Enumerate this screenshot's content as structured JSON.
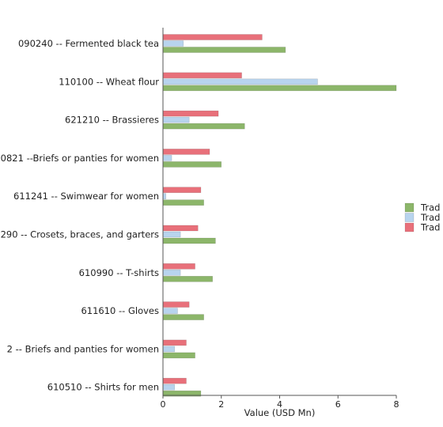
{
  "chart_data": {
    "type": "bar",
    "orientation": "horizontal",
    "categories": [
      "090240 -- Fermented black tea",
      "110100 -- Wheat flour",
      "621210 -- Brassieres",
      "0821 --Briefs or panties for women",
      "611241 -- Swimwear for women",
      "290 -- Crosets, braces, and garters",
      "610990 -- T-shirts",
      "611610 -- Gloves",
      "2 -- Briefs and panties for women",
      "610510 -- Shirts for men"
    ],
    "series": [
      {
        "name": "Trad",
        "color": "#e8707a",
        "values": [
          3.4,
          2.7,
          1.9,
          1.6,
          1.3,
          1.2,
          1.1,
          0.9,
          0.8,
          0.8
        ]
      },
      {
        "name": "Trad",
        "color": "#b8d4ee",
        "values": [
          0.7,
          5.3,
          0.9,
          0.3,
          0.1,
          0.6,
          0.6,
          0.5,
          0.4,
          0.4
        ]
      },
      {
        "name": "Trad",
        "color": "#8cb66a",
        "values": [
          4.2,
          8.0,
          2.8,
          2.0,
          1.4,
          1.8,
          1.7,
          1.4,
          1.1,
          1.3
        ]
      }
    ],
    "legend": [
      {
        "label": "Trad",
        "color": "#8cb66a"
      },
      {
        "label": "Trad",
        "color": "#b8d4ee"
      },
      {
        "label": "Trad",
        "color": "#e8707a"
      }
    ],
    "xlabel": "Value (USD Mn)",
    "xlim": [
      0,
      8
    ],
    "xticks": [
      0,
      2,
      4,
      6,
      8
    ],
    "grid": false,
    "legend_position": "right"
  }
}
